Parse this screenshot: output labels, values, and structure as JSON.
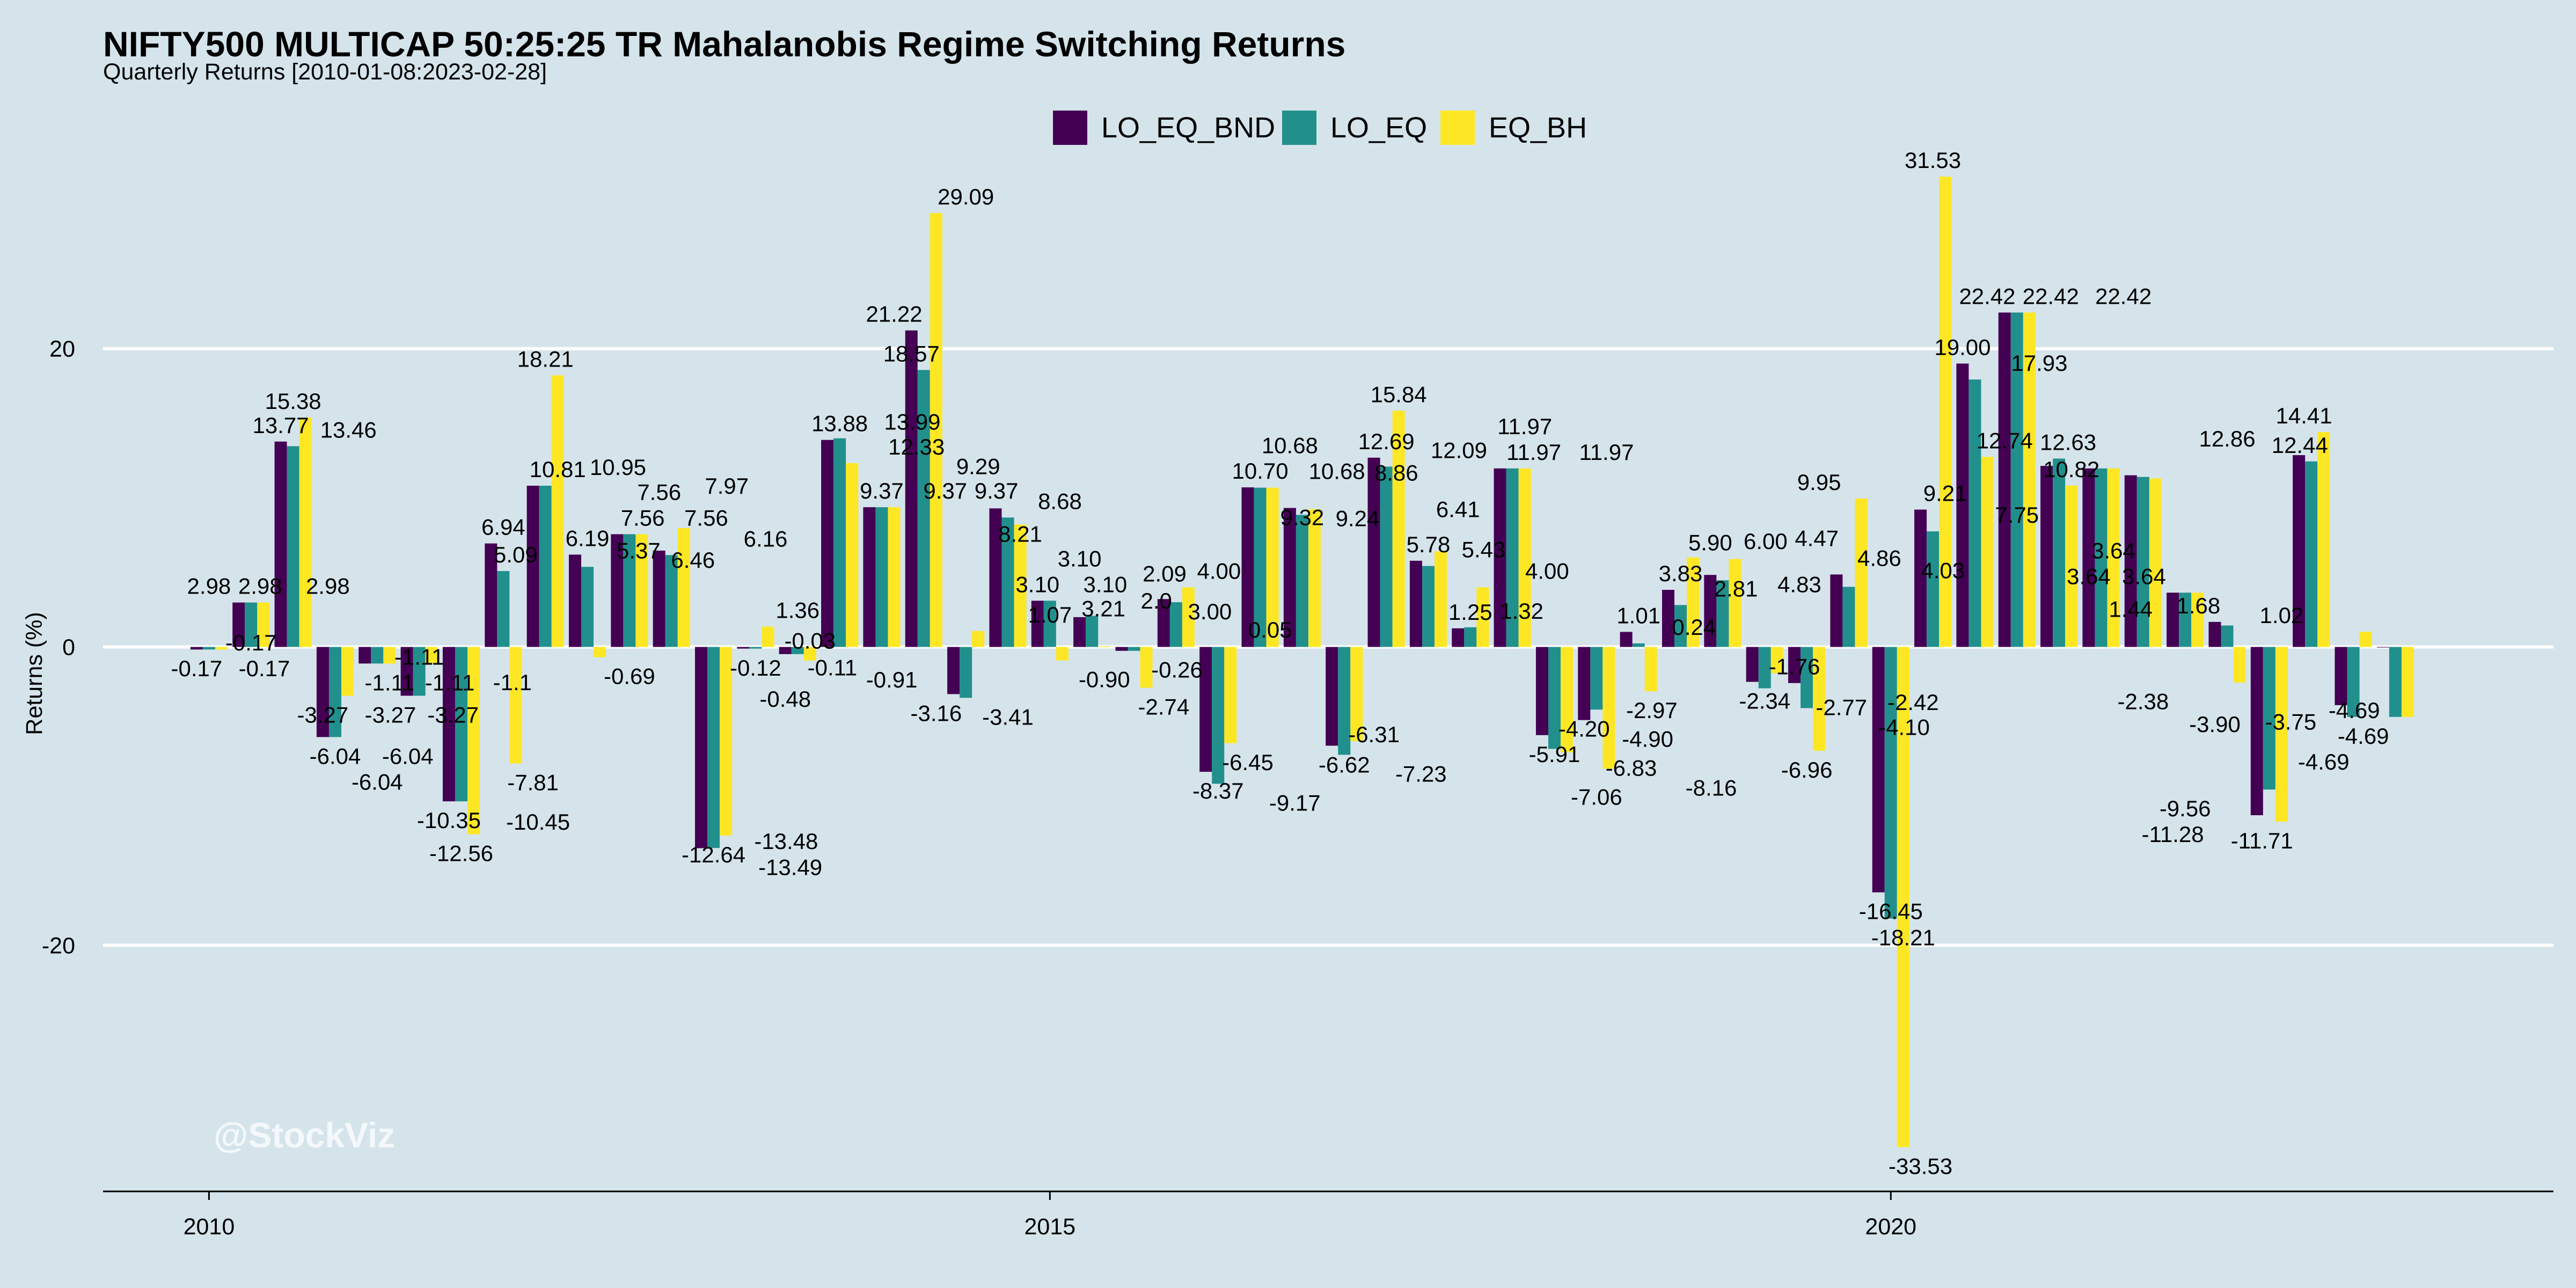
{
  "title": "NIFTY500 MULTICAP 50:25:25 TR Mahalanobis Regime Switching Returns",
  "subtitle": "Quarterly Returns [2010-01-08:2023-02-28]",
  "watermark": "@StockViz",
  "colors": {
    "LO_EQ_BND": "#440154",
    "LO_EQ": "#21908c",
    "EQ_BH": "#fde725",
    "background": "#d5e4eb",
    "grid": "#ffffff"
  },
  "chart_data": {
    "type": "bar",
    "title": "NIFTY500 MULTICAP 50:25:25 TR Mahalanobis Regime Switching Returns",
    "subtitle": "Quarterly Returns [2010-01-08:2023-02-28]",
    "xlabel": "",
    "ylabel": "Returns (%)",
    "ylim": [
      -36.5,
      31.5
    ],
    "xlim": [
      2009.37,
      2023.94
    ],
    "x_ticks": [
      2010,
      2015,
      2020
    ],
    "y_ticks": [
      -20,
      0,
      20
    ],
    "grid": true,
    "legend_position": "top",
    "x": [
      2010.0,
      2010.25,
      2010.5,
      2010.75,
      2011.0,
      2011.25,
      2011.5,
      2011.75,
      2012.0,
      2012.25,
      2012.5,
      2012.75,
      2013.0,
      2013.25,
      2013.5,
      2013.75,
      2014.0,
      2014.25,
      2014.5,
      2014.75,
      2015.0,
      2015.25,
      2015.5,
      2015.75,
      2016.0,
      2016.25,
      2016.5,
      2016.75,
      2017.0,
      2017.25,
      2017.5,
      2017.75,
      2018.0,
      2018.25,
      2018.5,
      2018.75,
      2019.0,
      2019.25,
      2019.5,
      2019.75,
      2020.0,
      2020.25,
      2020.5,
      2020.75,
      2021.0,
      2021.25,
      2021.5,
      2021.75,
      2022.0,
      2022.25,
      2022.5,
      2022.75,
      2023.0
    ],
    "series": [
      {
        "name": "LO_EQ_BND",
        "values": [
          -0.17,
          2.98,
          13.77,
          -6.04,
          -1.11,
          -3.27,
          -10.35,
          6.94,
          10.81,
          6.19,
          7.56,
          6.46,
          -13.49,
          -0.11,
          -0.48,
          13.88,
          9.37,
          21.22,
          -3.16,
          9.29,
          3.1,
          2.0,
          -0.26,
          3.21,
          -8.37,
          10.7,
          9.32,
          -6.62,
          12.69,
          5.78,
          1.25,
          11.97,
          -5.91,
          -4.9,
          1.01,
          3.83,
          4.83,
          -2.34,
          -2.42,
          4.86,
          -16.45,
          9.21,
          19.0,
          22.42,
          12.14,
          11.97,
          11.51,
          3.64,
          1.68,
          -11.28,
          12.86,
          -3.9,
          0.0
        ]
      },
      {
        "name": "LO_EQ",
        "values": [
          -0.17,
          2.98,
          13.46,
          -6.04,
          -1.11,
          -3.27,
          -10.35,
          5.09,
          10.81,
          5.37,
          7.56,
          6.16,
          -13.48,
          -0.11,
          -0.48,
          13.99,
          9.37,
          18.57,
          -3.41,
          8.68,
          3.1,
          2.09,
          -0.26,
          3.0,
          -9.17,
          10.68,
          8.86,
          -7.23,
          12.09,
          5.43,
          1.32,
          11.97,
          -6.83,
          -4.2,
          0.24,
          2.81,
          4.47,
          -2.77,
          -4.1,
          4.03,
          -18.21,
          7.75,
          17.93,
          22.42,
          12.63,
          11.97,
          11.4,
          3.64,
          1.44,
          -9.56,
          12.44,
          -4.69,
          -4.69
        ]
      },
      {
        "name": "EQ_BH",
        "values": [
          -0.17,
          2.98,
          15.38,
          -3.27,
          -1.11,
          -1.11,
          -12.56,
          -7.81,
          18.21,
          -0.69,
          7.56,
          7.97,
          -12.64,
          1.36,
          -0.91,
          12.33,
          9.37,
          29.09,
          1.07,
          8.21,
          -0.9,
          0.05,
          -2.74,
          4.0,
          -6.45,
          10.68,
          9.24,
          -6.31,
          15.84,
          6.41,
          4.0,
          11.97,
          -7.06,
          -8.16,
          -2.97,
          6.0,
          5.9,
          -1.76,
          -6.96,
          9.95,
          -33.53,
          31.53,
          12.74,
          22.42,
          10.82,
          11.97,
          11.3,
          3.64,
          -2.38,
          -11.71,
          14.41,
          1.02,
          -4.69
        ]
      }
    ],
    "data_labels": [
      "-0.17",
      "2.98",
      "-0.17",
      "2.98",
      "-0.17",
      "2.98",
      "13.77",
      "15.38",
      "13.46",
      "-3.27",
      "-6.04",
      "-3.27",
      "-6.04",
      "-6.04",
      "-1.11",
      "-1.11",
      "-1.11",
      "-3.27",
      "-10.35",
      "-12.56",
      "-10.45",
      "-1.1",
      "6.94",
      "5.09",
      "-7.81",
      "18.21",
      "10.81",
      "10.95",
      "6.19",
      "7.56",
      "5.37",
      "-0.69",
      "7.56",
      "7.56",
      "6.46",
      "7.97",
      "6.16",
      "-12.64",
      "-13.49",
      "-13.48",
      "-0.12",
      "-0.11",
      "-0.48",
      "1.36",
      "-0.03",
      "-0.91",
      "13.88",
      "12.33",
      "13.99",
      "9.37",
      "21.22",
      "18.57",
      "9.37",
      "-3.16",
      "9.37",
      "29.09",
      "9.29",
      "8.68",
      "-3.41",
      "8.21",
      "3.10",
      "1.07",
      "3.10",
      "3.10",
      "2.0",
      "-0.90",
      "2.09",
      "-0.26",
      "3.21",
      "-2.74",
      "4.00",
      "3.00",
      "0.05",
      "-8.37",
      "-9.17",
      "-6.45",
      "10.70",
      "10.68",
      "10.68",
      "9.32",
      "9.24",
      "8.86",
      "-6.62",
      "-7.23",
      "-6.31",
      "12.69",
      "15.84",
      "12.09",
      "5.78",
      "5.43",
      "6.41",
      "1.25",
      "4.00",
      "1.32",
      "11.97",
      "11.97",
      "11.97",
      "-5.91",
      "-6.83",
      "-4.20",
      "-7.06",
      "-2.97",
      "-4.90",
      "1.01",
      "0.24",
      "-8.16",
      "3.83",
      "2.81",
      "5.90",
      "6.00",
      "4.83",
      "4.47",
      "-2.34",
      "-2.77",
      "-1.76",
      "-6.96",
      "9.95",
      "4.86",
      "-2.42",
      "-4.10",
      "4.03",
      "-16.45",
      "-18.21",
      "-33.53",
      "31.53",
      "9.21",
      "19.00",
      "17.93",
      "22.42",
      "12.74",
      "7.75",
      "22.42",
      "12.63",
      "22.42",
      "10.82",
      "3.64",
      "3.64",
      "3.64",
      "1.44",
      "-2.38",
      "1.68",
      "-11.28",
      "-9.56",
      "-11.71",
      "-3.90",
      "12.86",
      "14.41",
      "12.44",
      "-3.75",
      "1.02",
      "-4.69",
      "-4.69",
      "-4.69"
    ]
  }
}
